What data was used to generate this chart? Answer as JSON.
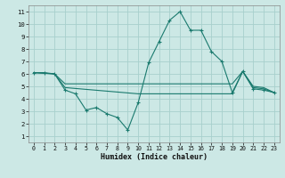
{
  "xlabel": "Humidex (Indice chaleur)",
  "bg_color": "#cce8e5",
  "grid_color": "#a8d0cc",
  "line_color": "#1a7a6e",
  "xlim": [
    -0.5,
    23.5
  ],
  "ylim": [
    0.5,
    11.5
  ],
  "xticks": [
    0,
    1,
    2,
    3,
    4,
    5,
    6,
    7,
    8,
    9,
    10,
    11,
    12,
    13,
    14,
    15,
    16,
    17,
    18,
    19,
    20,
    21,
    22,
    23
  ],
  "yticks": [
    1,
    2,
    3,
    4,
    5,
    6,
    7,
    8,
    9,
    10,
    11
  ],
  "line_zigzag_x": [
    0,
    1,
    2,
    3,
    4,
    5,
    6,
    7,
    8,
    9,
    10,
    11,
    12,
    13,
    14,
    15,
    16,
    17,
    18,
    19,
    20,
    21,
    22,
    23
  ],
  "line_zigzag_y": [
    6.1,
    6.1,
    6.0,
    4.7,
    4.4,
    3.1,
    3.3,
    2.8,
    2.5,
    1.5,
    3.7,
    6.9,
    8.6,
    10.3,
    11.0,
    9.5,
    9.5,
    7.8,
    7.0,
    4.5,
    6.2,
    4.8,
    4.7,
    4.5
  ],
  "line_high_x": [
    0,
    2,
    3,
    10,
    19,
    20,
    21,
    22,
    23
  ],
  "line_high_y": [
    6.1,
    6.0,
    5.2,
    5.2,
    5.2,
    6.2,
    5.0,
    4.9,
    4.5
  ],
  "line_low_x": [
    0,
    2,
    3,
    10,
    19,
    20,
    21,
    22,
    23
  ],
  "line_low_y": [
    6.1,
    6.0,
    4.9,
    4.4,
    4.4,
    6.2,
    4.9,
    4.8,
    4.5
  ]
}
